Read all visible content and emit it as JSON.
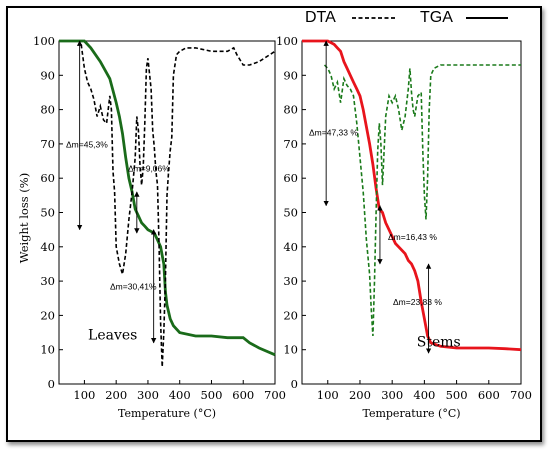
{
  "legend": {
    "dta_label": "DTA",
    "tga_label": "TGA"
  },
  "chart_data": [
    {
      "type": "line",
      "xlabel": "Temperature (°C)",
      "ylabel": "Weight loss (%)",
      "xlim": [
        20,
        700
      ],
      "ylim": [
        0,
        100
      ],
      "xticks": [
        100,
        200,
        300,
        400,
        500,
        600,
        700
      ],
      "yticks": [
        0,
        10,
        20,
        30,
        40,
        50,
        60,
        70,
        80,
        90,
        100
      ],
      "grid": false,
      "sample_label": "Leaves",
      "series": [
        {
          "name": "TGA",
          "color": "#1a6b1a",
          "style": "solid",
          "x": [
            20,
            100,
            120,
            150,
            180,
            200,
            210,
            220,
            230,
            240,
            250,
            260,
            270,
            280,
            290,
            300,
            320,
            330,
            340,
            350,
            355,
            360,
            370,
            380,
            400,
            450,
            500,
            550,
            600,
            620,
            650,
            700
          ],
          "y": [
            100,
            100,
            98,
            94,
            89,
            82,
            78,
            73,
            66,
            60,
            56,
            51,
            49,
            47,
            46,
            45,
            44,
            42,
            40,
            35,
            27,
            23,
            19,
            17,
            15,
            14,
            14,
            13.5,
            13.5,
            12,
            10.5,
            8.5
          ]
        },
        {
          "name": "DTA",
          "color": "#000000",
          "style": "dashed",
          "x": [
            90,
            100,
            105,
            110,
            120,
            130,
            140,
            150,
            160,
            170,
            180,
            185,
            190,
            195,
            200,
            210,
            220,
            230,
            240,
            250,
            260,
            265,
            270,
            275,
            280,
            285,
            290,
            295,
            300,
            310,
            315,
            320,
            325,
            330,
            335,
            340,
            345,
            350,
            355,
            360,
            365,
            370,
            375,
            380,
            390,
            400,
            420,
            450,
            500,
            550,
            570,
            580,
            600,
            620,
            650,
            700
          ],
          "y": [
            99,
            92,
            90,
            88,
            86,
            83,
            78,
            81,
            77,
            76,
            84,
            80,
            62,
            56,
            40,
            35,
            32,
            38,
            48,
            56,
            66,
            78,
            74,
            64,
            58,
            63,
            76,
            92,
            95,
            86,
            74,
            69,
            62,
            58,
            40,
            18,
            5,
            15,
            30,
            55,
            62,
            68,
            72,
            90,
            96,
            97,
            98,
            98,
            97,
            97,
            98,
            96,
            93,
            93,
            94,
            97
          ]
        }
      ],
      "annotations": [
        {
          "text": "Δm=45,3%"
        },
        {
          "text": "Δm=9,06%"
        },
        {
          "text": "Δm=30,41%"
        }
      ]
    },
    {
      "type": "line",
      "xlabel": "Temperature (°C)",
      "ylabel": "",
      "xlim": [
        20,
        700
      ],
      "ylim": [
        0,
        100
      ],
      "xticks": [
        100,
        200,
        300,
        400,
        500,
        600,
        700
      ],
      "yticks": [
        0,
        10,
        20,
        30,
        40,
        50,
        60,
        70,
        80,
        90,
        100
      ],
      "grid": false,
      "sample_label": "Stems",
      "series": [
        {
          "name": "TGA",
          "color": "#e8141c",
          "style": "solid",
          "x": [
            20,
            100,
            120,
            130,
            140,
            150,
            160,
            170,
            180,
            190,
            200,
            210,
            220,
            230,
            240,
            250,
            260,
            270,
            280,
            290,
            300,
            310,
            320,
            330,
            340,
            350,
            360,
            370,
            380,
            390,
            400,
            410,
            420,
            450,
            500,
            550,
            600,
            650,
            700
          ],
          "y": [
            100,
            100,
            99,
            98,
            97,
            94,
            92,
            90,
            88,
            86,
            84,
            80,
            75,
            70,
            64,
            57,
            51,
            50,
            47,
            45,
            43,
            41,
            40,
            39,
            38,
            36,
            35,
            33,
            30,
            24,
            19,
            14,
            12,
            11,
            10.5,
            10.5,
            10.5,
            10.3,
            10
          ]
        },
        {
          "name": "DTA",
          "color": "#1a7a1a",
          "style": "dashed",
          "x": [
            90,
            100,
            110,
            120,
            130,
            140,
            150,
            160,
            170,
            180,
            190,
            200,
            210,
            220,
            230,
            235,
            240,
            245,
            250,
            255,
            260,
            265,
            270,
            275,
            280,
            290,
            300,
            310,
            320,
            330,
            340,
            350,
            355,
            360,
            365,
            370,
            380,
            390,
            395,
            400,
            405,
            410,
            415,
            420,
            430,
            450,
            500,
            550,
            600,
            650,
            700
          ],
          "y": [
            93,
            92,
            90,
            86,
            88,
            82,
            89,
            87,
            86,
            84,
            76,
            66,
            56,
            42,
            32,
            22,
            14,
            30,
            50,
            68,
            76,
            70,
            58,
            68,
            78,
            84,
            82,
            84,
            80,
            74,
            78,
            86,
            92,
            85,
            80,
            78,
            84,
            85,
            68,
            55,
            48,
            60,
            80,
            90,
            92,
            93,
            93,
            93,
            93,
            93,
            93
          ]
        }
      ],
      "annotations": [
        {
          "text": "Δm=47,33 %"
        },
        {
          "text": "Δm=16,43 %"
        },
        {
          "text": "Δm=23,83 %"
        }
      ]
    }
  ]
}
